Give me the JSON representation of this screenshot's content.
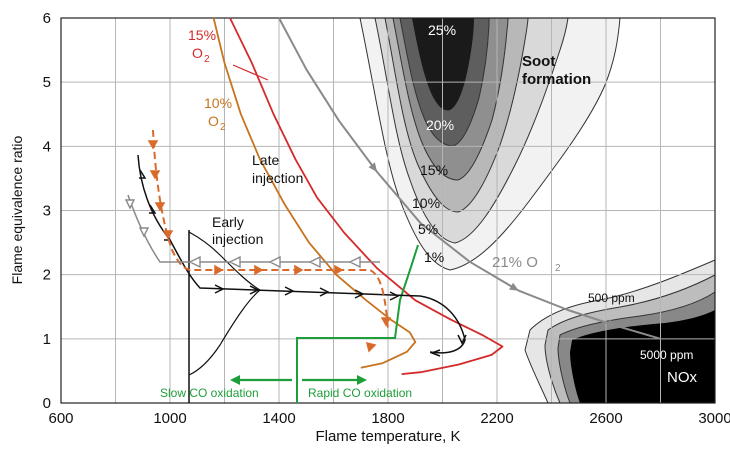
{
  "chart_data": {
    "type": "contour",
    "xlabel": "Flame temperature, K",
    "ylabel": "Flame equivalence ratio",
    "xlim": [
      600,
      3000
    ],
    "ylim": [
      0,
      6
    ],
    "x_ticks": [
      "600",
      "1000",
      "1400",
      "1800",
      "2200",
      "2600",
      "3000"
    ],
    "y_ticks": [
      "0",
      "1",
      "2",
      "3",
      "4",
      "5",
      "6"
    ],
    "grid": true,
    "colors": {
      "o2_15": "#d42a2a",
      "o2_10": "#c8731e",
      "o2_21": "#8a8a8a",
      "co_boundary": "#1e9e3a",
      "late_path": "#d96a2a",
      "early_path": "#111111",
      "soot_shades": [
        "#f2f2f2",
        "#d9d9d9",
        "#b8b8b8",
        "#8f8f8f",
        "#5e5e5e",
        "#1a1a1a"
      ],
      "nox_shades": [
        "#e6e6e6",
        "#bdbdbd",
        "#888888",
        "#000000"
      ]
    },
    "annotations": {
      "o2_15_pct": "15%",
      "o2_15_gas": "O",
      "o2_15_sub": "2",
      "o2_10_pct": "10%",
      "o2_10_gas": "O",
      "o2_10_sub": "2",
      "o2_21": "21% O",
      "o2_21_sub": "2",
      "soot_1": "Soot",
      "soot_2": "formation",
      "late_1": "Late",
      "late_2": "injection",
      "early_1": "Early",
      "early_2": "injection",
      "slow_co": "Slow CO oxidation",
      "rapid_co": "Rapid CO oxidation",
      "nox_500": "500 ppm",
      "nox_5000": "5000 ppm",
      "nox": "NOx"
    },
    "soot_contour_labels": [
      "25%",
      "20%",
      "15%",
      "10%",
      "5%",
      "1%"
    ],
    "series": [
      {
        "name": "15% O2",
        "x": [
          1220,
          1300,
          1380,
          1460,
          1540,
          1640,
          1760,
          1900,
          2030,
          2150,
          2220,
          2180,
          2060,
          1920,
          1850
        ],
        "y": [
          6.0,
          5.3,
          4.5,
          3.8,
          3.2,
          2.65,
          2.1,
          1.6,
          1.3,
          1.05,
          0.88,
          0.75,
          0.6,
          0.48,
          0.45
        ]
      },
      {
        "name": "10% O2",
        "x": [
          1160,
          1200,
          1260,
          1330,
          1420,
          1510,
          1610,
          1720,
          1810,
          1880,
          1900,
          1870,
          1780,
          1700
        ],
        "y": [
          6.0,
          5.3,
          4.5,
          3.8,
          3.1,
          2.5,
          2.0,
          1.6,
          1.3,
          1.1,
          0.95,
          0.8,
          0.62,
          0.55
        ]
      },
      {
        "name": "21% O2",
        "x": [
          1400,
          1500,
          1620,
          1760,
          1920,
          2100,
          2280,
          2460,
          2640,
          2800
        ],
        "y": [
          6.0,
          5.2,
          4.4,
          3.6,
          2.8,
          2.2,
          1.75,
          1.45,
          1.2,
          1.0
        ]
      }
    ]
  }
}
